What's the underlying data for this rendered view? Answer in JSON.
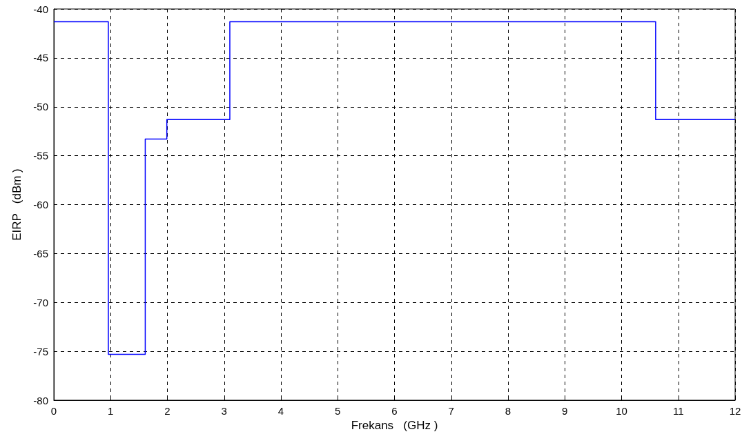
{
  "chart_data": {
    "type": "step",
    "xlabel": "Frekans   (GHz )",
    "ylabel": "EIRP   (dBm )",
    "x": [
      0,
      0.96,
      1.61,
      1.99,
      3.1,
      10.6,
      12
    ],
    "series": [
      {
        "color": "#0000ff",
        "values": [
          -41.3,
          -75.3,
          -53.3,
          -51.3,
          -41.3,
          -51.3,
          -51.3
        ]
      }
    ],
    "xlim": [
      0,
      12
    ],
    "xticks": [
      0,
      1,
      2,
      3,
      4,
      5,
      6,
      7,
      8,
      9,
      10,
      11,
      12
    ],
    "ylim": [
      -80,
      -40
    ],
    "yticks": [
      -80,
      -75,
      -70,
      -65,
      -60,
      -55,
      -50,
      -45,
      -40
    ],
    "grid": true,
    "marker": "none",
    "line_style": "solid"
  }
}
